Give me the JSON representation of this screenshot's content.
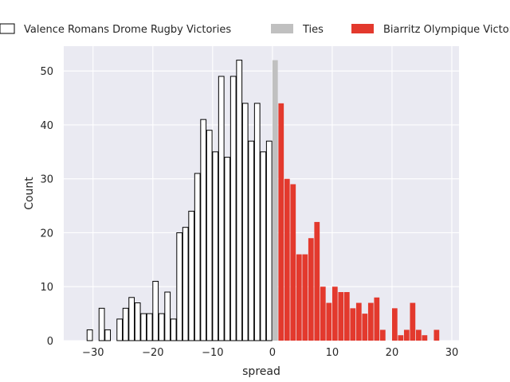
{
  "chart_data": {
    "type": "bar",
    "title": "",
    "xlabel": "spread",
    "ylabel": "Count",
    "xlim": [
      -34.9,
      31.2
    ],
    "ylim": [
      0,
      54.6
    ],
    "xticks": [
      -30,
      -20,
      -10,
      0,
      10,
      20,
      30
    ],
    "yticks": [
      0,
      10,
      20,
      30,
      40,
      50
    ],
    "grid": true,
    "legend_placement": "top, outside plot",
    "colors": {
      "background": "#eaeaf2",
      "grid": "#ffffff",
      "valence_fill": "#ffffff",
      "valence_edge": "#000000",
      "ties": "#c0c0c0",
      "biarritz": "#e3392d"
    },
    "series": [
      {
        "name": "Valence Romans Drome Rugby Victories",
        "x": [
          -31,
          -29,
          -28,
          -26,
          -25,
          -24,
          -23,
          -22,
          -21,
          -20,
          -19,
          -18,
          -17,
          -16,
          -15,
          -14,
          -13,
          -12,
          -11,
          -10,
          -9,
          -8,
          -7,
          -6,
          -5,
          -4,
          -3,
          -2,
          -1
        ],
        "values": [
          2,
          6,
          2,
          4,
          6,
          8,
          7,
          5,
          5,
          11,
          5,
          9,
          4,
          20,
          21,
          24,
          31,
          41,
          39,
          35,
          49,
          34,
          49,
          52,
          44,
          37,
          44,
          35,
          37
        ]
      },
      {
        "name": "Ties",
        "x": [
          0
        ],
        "values": [
          52
        ]
      },
      {
        "name": "Biarritz Olympique Victories",
        "x": [
          1,
          2,
          3,
          4,
          5,
          6,
          7,
          8,
          9,
          10,
          11,
          12,
          13,
          14,
          15,
          16,
          17,
          18,
          20,
          21,
          22,
          23,
          24,
          25,
          27,
          28
        ],
        "values": [
          44,
          30,
          29,
          16,
          16,
          19,
          22,
          10,
          7,
          10,
          9,
          9,
          6,
          7,
          5,
          7,
          8,
          2,
          6,
          1,
          2,
          7,
          2,
          1,
          2,
          0
        ]
      }
    ]
  }
}
